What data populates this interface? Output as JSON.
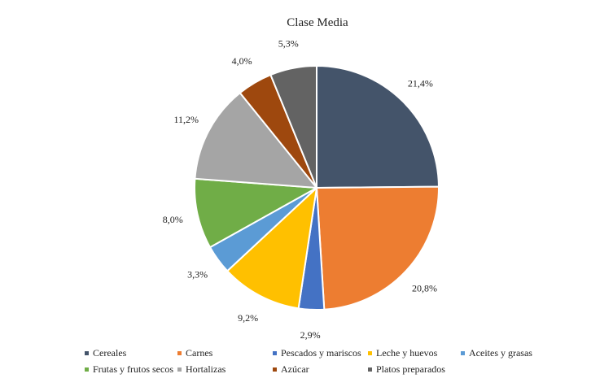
{
  "chart_data": {
    "type": "pie",
    "title": "Clase Media",
    "slices": [
      {
        "name": "Cereales",
        "label": "21,4%",
        "value": 21.4,
        "color": "#44546A"
      },
      {
        "name": "Carnes",
        "label": "20,8%",
        "value": 20.8,
        "color": "#ED7D31"
      },
      {
        "name": "Pescados y mariscos",
        "label": "2,9%",
        "value": 2.9,
        "color": "#4472C4"
      },
      {
        "name": "Leche y huevos",
        "label": "9,2%",
        "value": 9.2,
        "color": "#FFC000"
      },
      {
        "name": "Aceites y grasas",
        "label": "3,3%",
        "value": 3.3,
        "color": "#5B9BD5"
      },
      {
        "name": "Frutas y frutos secos",
        "label": "8,0%",
        "value": 8.0,
        "color": "#70AD47"
      },
      {
        "name": "Hortalizas",
        "label": "11,2%",
        "value": 11.2,
        "color": "#A5A5A5"
      },
      {
        "name": "Azúcar",
        "label": "4,0%",
        "value": 4.0,
        "color": "#9E480E"
      },
      {
        "name": "Platos preparados",
        "label": "5,3%",
        "value": 5.3,
        "color": "#636363"
      }
    ],
    "legend_position": "bottom"
  }
}
